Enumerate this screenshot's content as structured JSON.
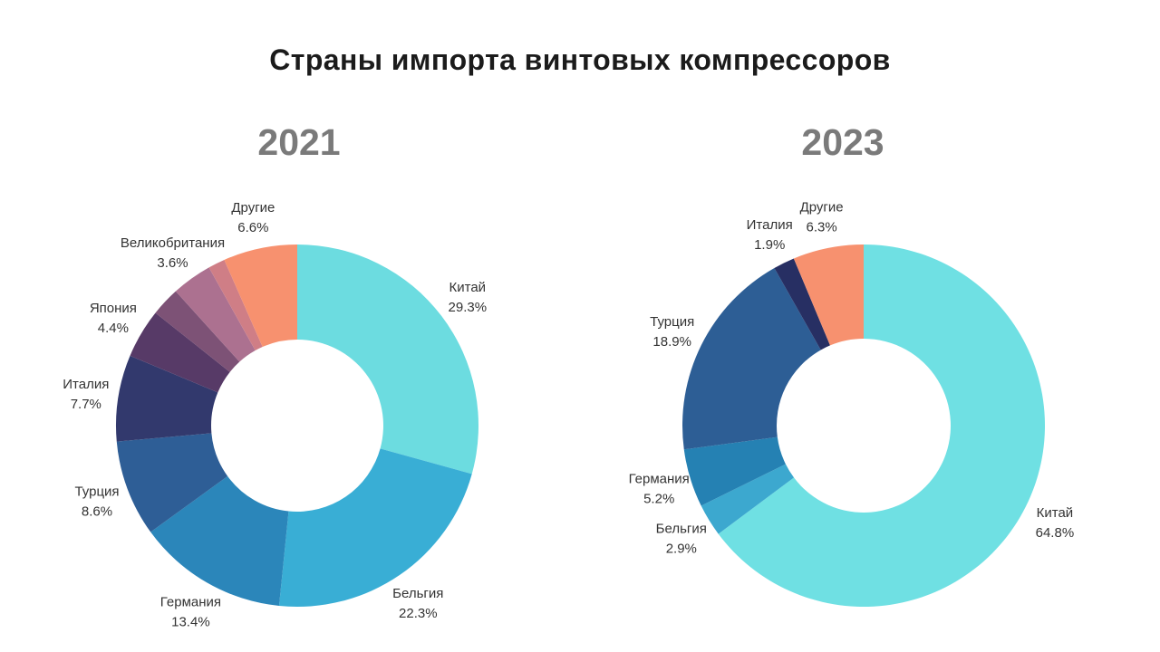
{
  "page_title": "Страны импорта винтовых компрессоров",
  "style": {
    "background": "#ffffff",
    "title_color": "#1b1b1b",
    "year_color": "#7a7a7a",
    "label_color": "#333333"
  },
  "chart_data": [
    {
      "type": "pie",
      "subtype": "donut",
      "year": "2021",
      "direction": "clockwise",
      "start_angle_deg": 0,
      "hole_ratio": 0.475,
      "legend": "none",
      "slices": [
        {
          "label": "Китай",
          "pct": "29.3%",
          "value": 29.3,
          "color": "#6CDCE0"
        },
        {
          "label": "Бельгия",
          "pct": "22.3%",
          "value": 22.3,
          "color": "#39AED5"
        },
        {
          "label": "Германия",
          "pct": "13.4%",
          "value": 13.4,
          "color": "#2B86BA"
        },
        {
          "label": "Турция",
          "pct": "8.6%",
          "value": 8.6,
          "color": "#2E5E96"
        },
        {
          "label": "Италия",
          "pct": "7.7%",
          "value": 7.7,
          "color": "#32396D"
        },
        {
          "label": "Япония",
          "pct": "4.4%",
          "value": 4.4,
          "color": "#573A67"
        },
        {
          "label": "",
          "pct": "",
          "value": 2.6,
          "color": "#7D5276"
        },
        {
          "label": "Великобритания",
          "pct": "3.6%",
          "value": 3.6,
          "color": "#AC7190"
        },
        {
          "label": "",
          "pct": "",
          "value": 1.5,
          "color": "#CF7E86"
        },
        {
          "label": "Другие",
          "pct": "6.6%",
          "value": 6.6,
          "color": "#F7916F"
        }
      ]
    },
    {
      "type": "pie",
      "subtype": "donut",
      "year": "2023",
      "direction": "clockwise",
      "start_angle_deg": 0,
      "hole_ratio": 0.48,
      "legend": "none",
      "slices": [
        {
          "label": "Китай",
          "pct": "64.8%",
          "value": 64.8,
          "color": "#6FE0E3"
        },
        {
          "label": "Бельгия",
          "pct": "2.9%",
          "value": 2.9,
          "color": "#3CA8CF"
        },
        {
          "label": "Германия",
          "pct": "5.2%",
          "value": 5.2,
          "color": "#2581B3"
        },
        {
          "label": "Турция",
          "pct": "18.9%",
          "value": 18.9,
          "color": "#2D5E95"
        },
        {
          "label": "Италия",
          "pct": "1.9%",
          "value": 1.9,
          "color": "#272F63"
        },
        {
          "label": "Другие",
          "pct": "6.3%",
          "value": 6.3,
          "color": "#F7916F"
        }
      ]
    }
  ]
}
